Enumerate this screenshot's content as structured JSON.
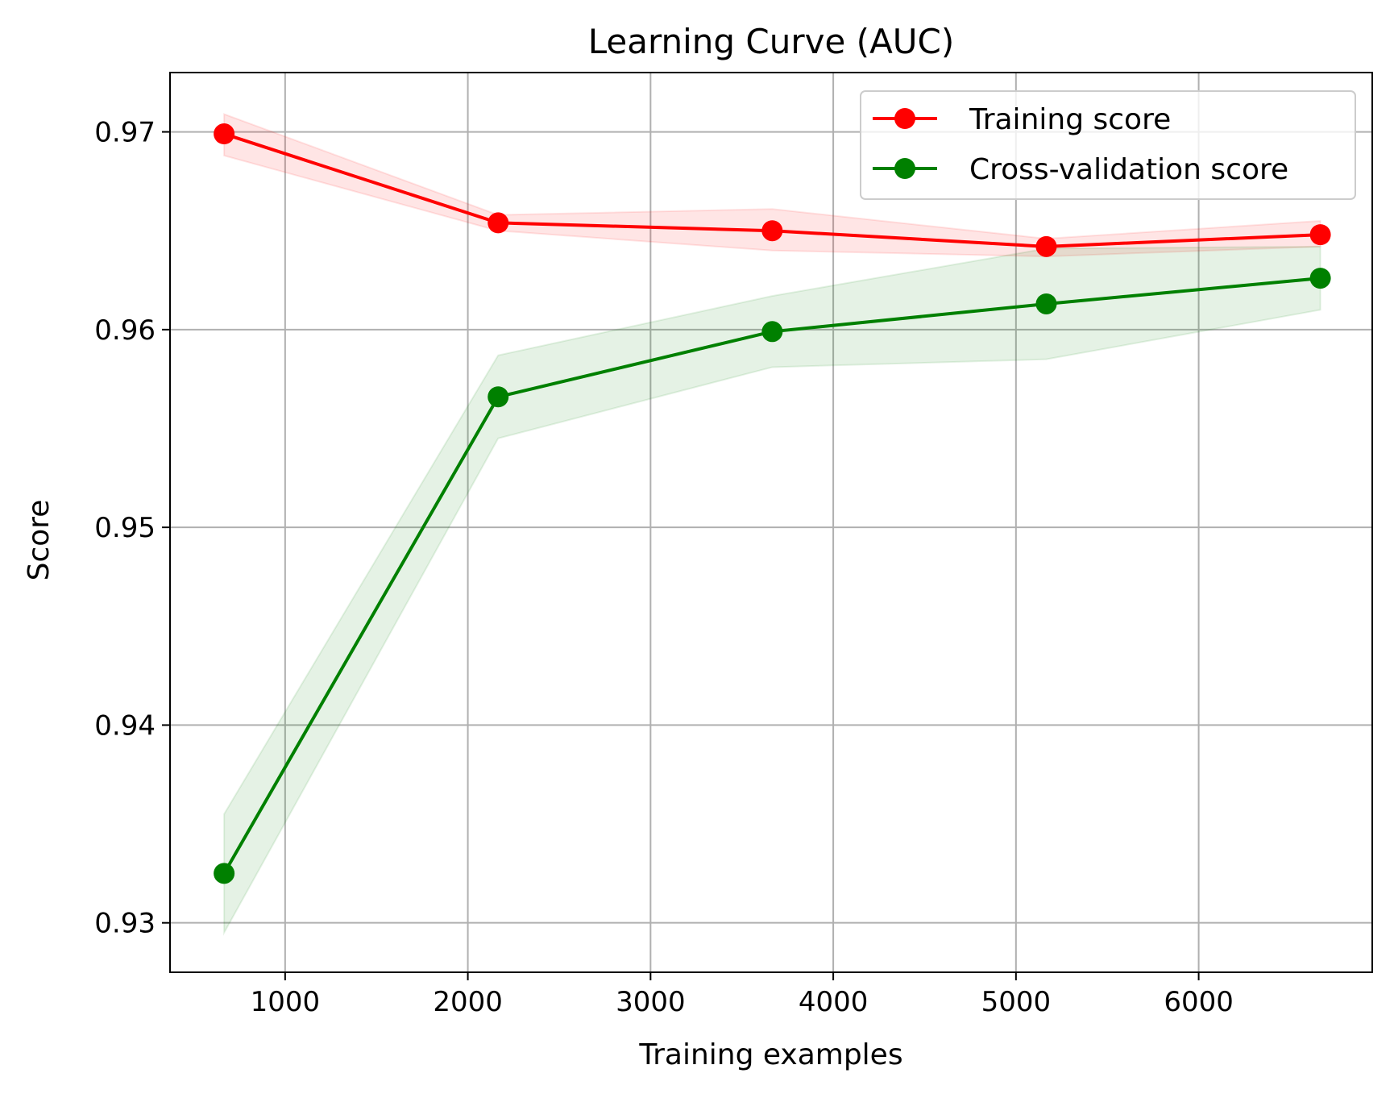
{
  "chart_data": {
    "type": "line",
    "title": "Learning Curve (AUC)",
    "xlabel": "Training examples",
    "ylabel": "Score",
    "xlim": [
      370,
      6950
    ],
    "ylim": [
      0.9275,
      0.973
    ],
    "xticks": [
      1000,
      2000,
      3000,
      4000,
      5000,
      6000
    ],
    "yticks": [
      0.93,
      0.94,
      0.95,
      0.96,
      0.97
    ],
    "xtick_labels": [
      "1000",
      "2000",
      "3000",
      "4000",
      "5000",
      "6000"
    ],
    "ytick_labels": [
      "0.93",
      "0.94",
      "0.95",
      "0.96",
      "0.97"
    ],
    "grid": true,
    "legend_position": "top-right",
    "x": [
      666,
      2166,
      3666,
      5166,
      6666
    ],
    "series": [
      {
        "name": "Training score",
        "color": "#ff0000",
        "band_color": "#ff0000",
        "values": [
          0.9699,
          0.9654,
          0.965,
          0.9642,
          0.9648
        ],
        "band_low": [
          0.9688,
          0.965,
          0.964,
          0.9637,
          0.9642
        ],
        "band_high": [
          0.9709,
          0.9658,
          0.9661,
          0.9646,
          0.9655
        ]
      },
      {
        "name": "Cross-validation score",
        "color": "#008000",
        "band_color": "#008000",
        "values": [
          0.9325,
          0.9566,
          0.9599,
          0.9613,
          0.9626
        ],
        "band_low": [
          0.9295,
          0.9545,
          0.9581,
          0.9585,
          0.961
        ],
        "band_high": [
          0.9355,
          0.9587,
          0.9617,
          0.9641,
          0.9642
        ]
      }
    ]
  }
}
